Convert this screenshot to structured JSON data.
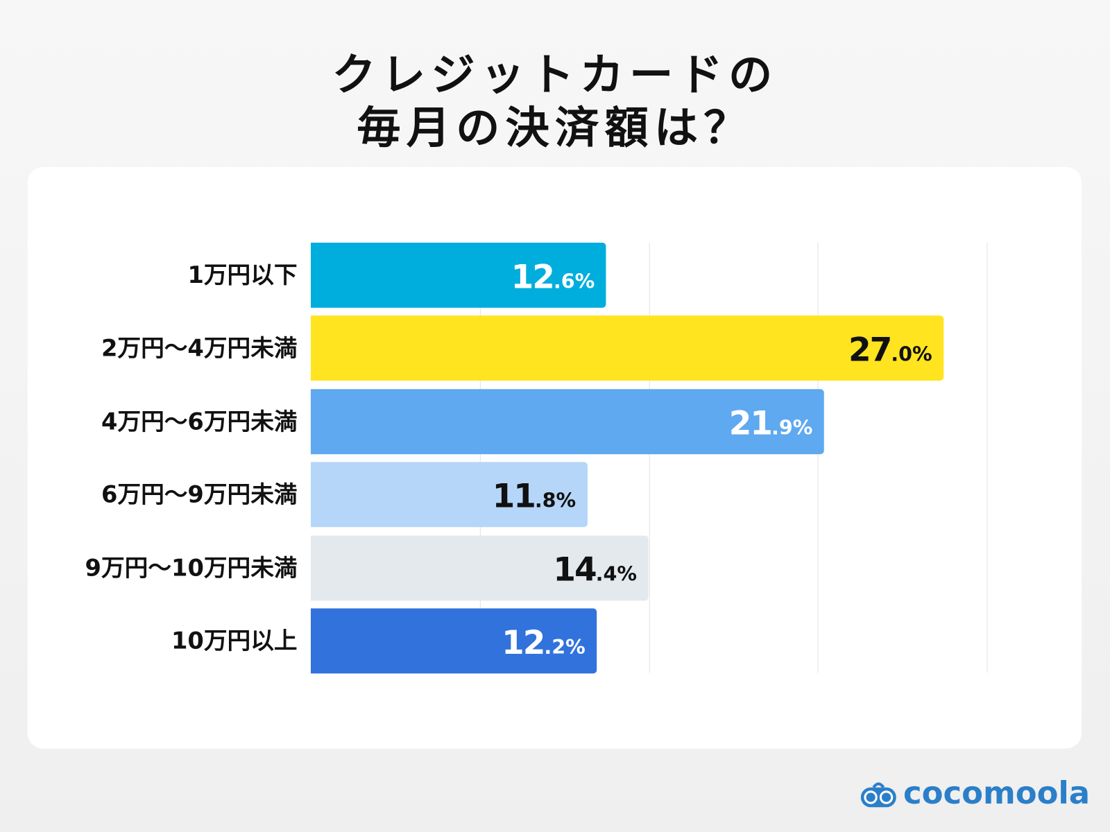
{
  "chart_data": {
    "type": "bar",
    "orientation": "horizontal",
    "title": "クレジットカードの\n毎月の決済額は？",
    "title_lines": [
      "クレジットカードの",
      "毎月の決済額は？"
    ],
    "categories": [
      "1万円以下",
      "2万円〜4万円未満",
      "4万円〜6万円未満",
      "6万円〜9万円未満",
      "9万円〜10万円未満",
      "10万円以上"
    ],
    "values": [
      12.6,
      27.0,
      21.9,
      11.8,
      14.4,
      12.2
    ],
    "labels": [
      {
        "int": "12",
        "dec": ".6%"
      },
      {
        "int": "27",
        "dec": ".0%"
      },
      {
        "int": "21",
        "dec": ".9%"
      },
      {
        "int": "11",
        "dec": ".8%"
      },
      {
        "int": "14",
        "dec": ".4%"
      },
      {
        "int": "12",
        "dec": ".2%"
      }
    ],
    "colors": [
      "#00aedd",
      "#ffe41f",
      "#5ea9f0",
      "#b5d6f8",
      "#e4e9ee",
      "#3172dc"
    ],
    "label_colors": [
      "#ffffff",
      "#111111",
      "#ffffff",
      "#111111",
      "#111111",
      "#ffffff"
    ],
    "xlim": [
      0,
      28.85
    ],
    "grid": true,
    "legend": "none"
  },
  "brand": {
    "name": "cocomoola",
    "color": "#2b7fc9"
  }
}
